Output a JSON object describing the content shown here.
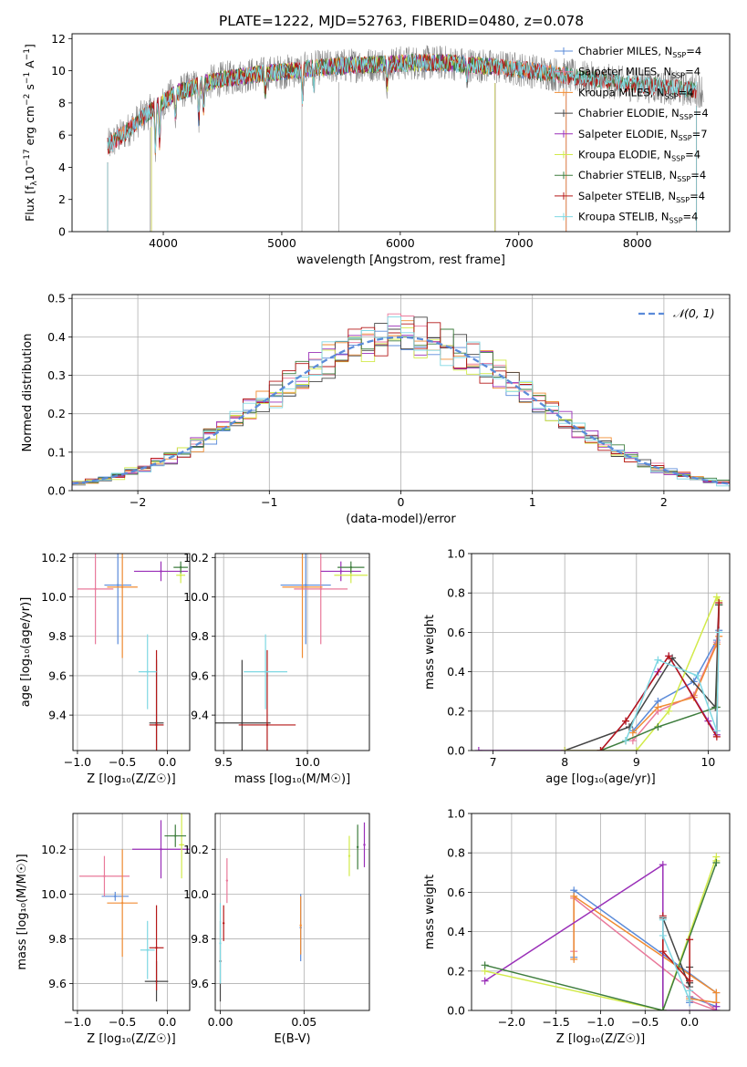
{
  "figure_title": "PLATE=1222, MJD=52763, FIBERID=0480, z=0.078",
  "colors": {
    "Chabrier MILES": "#5b8bd9",
    "Salpeter MILES": "#e9799a",
    "Kroupa MILES": "#f08c33",
    "Chabrier ELODIE": "#444444",
    "Salpeter ELODIE": "#9a2fb8",
    "Kroupa ELODIE": "#d2ea4a",
    "Chabrier STELIB": "#3e7d3e",
    "Salpeter STELIB": "#b51818",
    "Kroupa STELIB": "#7fd8e3",
    "gaussian": "#5b8bd9",
    "spectrum_gray": "#808080"
  },
  "chart_data": [
    {
      "id": "spectrum",
      "type": "line",
      "title": "PLATE=1222, MJD=52763, FIBERID=0480, z=0.078",
      "xlabel": "wavelength [Angstrom, rest frame]",
      "ylabel_parts": [
        "Flux [f",
        "λ",
        "10",
        "−17",
        " erg cm",
        "−2",
        " s",
        "−1",
        " A",
        "−1",
        "]"
      ],
      "xlim": [
        3230,
        8780
      ],
      "ylim": [
        0,
        12.3
      ],
      "xticks": [
        4000,
        5000,
        6000,
        7000,
        8000
      ],
      "yticks": [
        0,
        2,
        4,
        6,
        8,
        10,
        12
      ],
      "continuum": [
        [
          3530,
          5.3
        ],
        [
          3700,
          6.3
        ],
        [
          3800,
          7.0
        ],
        [
          3950,
          7.8
        ],
        [
          4100,
          8.6
        ],
        [
          4300,
          9.1
        ],
        [
          4500,
          9.5
        ],
        [
          4800,
          9.8
        ],
        [
          5100,
          10.0
        ],
        [
          5300,
          10.2
        ],
        [
          5500,
          10.3
        ],
        [
          5800,
          10.4
        ],
        [
          6100,
          10.5
        ],
        [
          6400,
          10.5
        ],
        [
          6700,
          10.3
        ],
        [
          7000,
          10.1
        ],
        [
          7300,
          9.8
        ],
        [
          7600,
          9.5
        ],
        [
          7900,
          9.2
        ],
        [
          8200,
          9.0
        ],
        [
          8500,
          8.8
        ]
      ],
      "series": [
        {
          "label": "Chabrier MILES, N",
          "sub": "SSP",
          "tail": "=4",
          "xmin": 3530,
          "xmax": 7400
        },
        {
          "label": "Salpeter MILES, N",
          "sub": "SSP",
          "tail": "=4",
          "xmin": 3530,
          "xmax": 7400
        },
        {
          "label": "Kroupa MILES, N",
          "sub": "SSP",
          "tail": "=4",
          "xmin": 3530,
          "xmax": 7400
        },
        {
          "label": "Chabrier ELODIE, N",
          "sub": "SSP",
          "tail": "=4",
          "xmin": 3900,
          "xmax": 6800
        },
        {
          "label": "Salpeter ELODIE, N",
          "sub": "SSP",
          "tail": "=7",
          "xmin": 3900,
          "xmax": 6800
        },
        {
          "label": "Kroupa ELODIE, N",
          "sub": "SSP",
          "tail": "=4",
          "xmin": 3900,
          "xmax": 6800
        },
        {
          "label": "Chabrier STELIB, N",
          "sub": "SSP",
          "tail": "=4",
          "xmin": 3530,
          "xmax": 8500
        },
        {
          "label": "Salpeter STELIB, N",
          "sub": "SSP",
          "tail": "=4",
          "xmin": 3530,
          "xmax": 8500
        },
        {
          "label": "Kroupa STELIB, N",
          "sub": "SSP",
          "tail": "=4",
          "xmin": 3530,
          "xmax": 8500
        }
      ],
      "legend_position": "upper-right"
    },
    {
      "id": "residuals",
      "type": "line",
      "xlabel": "(data-model)/error",
      "ylabel": "Normed distribution",
      "xlim": [
        -2.5,
        2.5
      ],
      "ylim": [
        0,
        0.51
      ],
      "xticks": [
        -2,
        -1,
        0,
        1,
        2
      ],
      "yticks": [
        0.0,
        0.1,
        0.2,
        0.3,
        0.4,
        0.5
      ],
      "grid": true,
      "gaussian_label": "𝒩(0, 1)",
      "legend_position": "upper-right",
      "bin_width": 0.1
    },
    {
      "id": "age_vs_Z",
      "type": "scatter",
      "xlabel": "Z [log₁₀(Z/Z☉)]",
      "ylabel": "age  [log₁₀(age/yr)]",
      "xlim": [
        -1.05,
        0.25
      ],
      "ylim": [
        9.22,
        10.22
      ],
      "xticks": [
        -1.0,
        -0.5,
        0.0
      ],
      "yticks": [
        9.4,
        9.6,
        9.8,
        10.0,
        10.2
      ],
      "grid": true,
      "points": [
        {
          "x": -0.55,
          "xerr": 0.15,
          "y": 10.06,
          "yerr": 0.3
        },
        {
          "x": -0.8,
          "xerr": 0.2,
          "y": 10.04,
          "yerr": 0.28
        },
        {
          "x": -0.5,
          "xerr": 0.17,
          "y": 10.05,
          "yerr": 0.36
        },
        {
          "x": -0.12,
          "xerr": 0.08,
          "y": 9.36,
          "yerr": 0.32
        },
        {
          "x": -0.07,
          "xerr": 0.3,
          "y": 10.13,
          "yerr": 0.05
        },
        {
          "x": 0.15,
          "xerr": 0.05,
          "y": 10.11,
          "yerr": 0.04
        },
        {
          "x": 0.15,
          "xerr": 0.08,
          "y": 10.15,
          "yerr": 0.03
        },
        {
          "x": -0.12,
          "xerr": 0.08,
          "y": 9.35,
          "yerr": 0.38
        },
        {
          "x": -0.22,
          "xerr": 0.1,
          "y": 9.62,
          "yerr": 0.19
        }
      ]
    },
    {
      "id": "age_vs_mass",
      "type": "scatter",
      "xlabel": "mass [log₁₀(M/M☉)]",
      "ylabel": "",
      "xlim": [
        9.45,
        10.37
      ],
      "ylim": [
        9.22,
        10.22
      ],
      "xticks": [
        9.5,
        10.0
      ],
      "yticks": [
        9.4,
        9.6,
        9.8,
        10.0,
        10.2
      ],
      "grid": true,
      "points": [
        {
          "x": 9.99,
          "xerr": 0.15,
          "y": 10.06,
          "yerr": 0.3
        },
        {
          "x": 10.08,
          "xerr": 0.16,
          "y": 10.04,
          "yerr": 0.28
        },
        {
          "x": 9.97,
          "xerr": 0.12,
          "y": 10.05,
          "yerr": 0.36
        },
        {
          "x": 9.61,
          "xerr": 0.17,
          "y": 9.36,
          "yerr": 0.32
        },
        {
          "x": 10.2,
          "xerr": 0.12,
          "y": 10.13,
          "yerr": 0.05
        },
        {
          "x": 10.26,
          "xerr": 0.1,
          "y": 10.11,
          "yerr": 0.04
        },
        {
          "x": 10.26,
          "xerr": 0.08,
          "y": 10.15,
          "yerr": 0.03
        },
        {
          "x": 9.76,
          "xerr": 0.17,
          "y": 9.35,
          "yerr": 0.38
        },
        {
          "x": 9.75,
          "xerr": 0.13,
          "y": 9.62,
          "yerr": 0.19
        }
      ]
    },
    {
      "id": "mass_weight_vs_age",
      "type": "line",
      "xlabel": "age  [log₁₀(age/yr)]",
      "ylabel": "mass weight",
      "xlim": [
        6.7,
        10.3
      ],
      "ylim": [
        0,
        1.0
      ],
      "xticks": [
        7,
        8,
        9,
        10
      ],
      "yticks": [
        0.0,
        0.2,
        0.4,
        0.6,
        0.8,
        1.0
      ],
      "grid": true,
      "series": [
        {
          "x": [
            8.95,
            9.3,
            9.8,
            10.12,
            10.15
          ],
          "y": [
            0.1,
            0.25,
            0.35,
            0.56,
            0.61
          ]
        },
        {
          "x": [
            8.95,
            9.3,
            9.8,
            10.12,
            10.15
          ],
          "y": [
            0.05,
            0.2,
            0.28,
            0.55,
            0.74
          ]
        },
        {
          "x": [
            8.95,
            9.3,
            9.8,
            10.12,
            10.15
          ],
          "y": [
            0.09,
            0.22,
            0.27,
            0.54,
            0.58
          ]
        },
        {
          "x": [
            8.0,
            8.9,
            9.5,
            10.1,
            10.15
          ],
          "y": [
            0.0,
            0.12,
            0.47,
            0.22,
            0.74
          ]
        },
        {
          "x": [
            6.8,
            8.0,
            8.5,
            8.85,
            9.3,
            9.45,
            10.0,
            10.12,
            10.15
          ],
          "y": [
            0.0,
            0.0,
            0.0,
            0.15,
            0.4,
            0.48,
            0.15,
            0.08,
            0.74
          ]
        },
        {
          "x": [
            8.0,
            9.0,
            9.45,
            10.12,
            10.15
          ],
          "y": [
            0.0,
            0.0,
            0.2,
            0.78,
            0.76
          ]
        },
        {
          "x": [
            8.5,
            8.85,
            9.3,
            10.12,
            10.15
          ],
          "y": [
            0.0,
            0.05,
            0.12,
            0.22,
            0.74
          ]
        },
        {
          "x": [
            8.5,
            8.85,
            9.45,
            10.12,
            10.15
          ],
          "y": [
            0.0,
            0.15,
            0.48,
            0.07,
            0.75
          ]
        },
        {
          "x": [
            8.85,
            9.3,
            9.85,
            10.12,
            10.15
          ],
          "y": [
            0.05,
            0.46,
            0.38,
            0.1,
            0.6
          ]
        }
      ]
    },
    {
      "id": "mass_vs_Z",
      "type": "scatter",
      "xlabel": "Z [log₁₀(Z/Z☉)]",
      "ylabel": "mass [log₁₀(M/M☉)]",
      "xlim": [
        -1.05,
        0.25
      ],
      "ylim": [
        9.48,
        10.36
      ],
      "xticks": [
        -1.0,
        -0.5,
        0.0
      ],
      "yticks": [
        9.6,
        9.8,
        10.0,
        10.2
      ],
      "grid": true,
      "points": [
        {
          "x": -0.58,
          "xerr": 0.15,
          "y": 9.99,
          "yerr": 0.02
        },
        {
          "x": -0.7,
          "xerr": 0.28,
          "y": 10.08,
          "yerr": 0.09
        },
        {
          "x": -0.5,
          "xerr": 0.17,
          "y": 9.96,
          "yerr": 0.24
        },
        {
          "x": -0.12,
          "xerr": 0.13,
          "y": 9.61,
          "yerr": 0.09
        },
        {
          "x": -0.07,
          "xerr": 0.32,
          "y": 10.2,
          "yerr": 0.13
        },
        {
          "x": 0.16,
          "xerr": 0.03,
          "y": 10.22,
          "yerr": 0.15
        },
        {
          "x": 0.09,
          "xerr": 0.12,
          "y": 10.26,
          "yerr": 0.05
        },
        {
          "x": -0.12,
          "xerr": 0.08,
          "y": 9.76,
          "yerr": 0.19
        },
        {
          "x": -0.22,
          "xerr": 0.08,
          "y": 9.75,
          "yerr": 0.13
        }
      ]
    },
    {
      "id": "mass_vs_EBV",
      "type": "scatter",
      "xlabel": "E(B-V)",
      "ylabel": "",
      "xlim": [
        -0.003,
        0.089
      ],
      "ylim": [
        9.48,
        10.36
      ],
      "xticks": [
        0.0,
        0.05
      ],
      "yticks": [
        9.6,
        9.8,
        10.0,
        10.2
      ],
      "grid": true,
      "points": [
        {
          "x": 0.048,
          "xerr": 0.0,
          "y": 9.85,
          "yerr": 0.15
        },
        {
          "x": 0.004,
          "xerr": 0.0,
          "y": 10.06,
          "yerr": 0.1
        },
        {
          "x": 0.048,
          "xerr": 0.0,
          "y": 9.86,
          "yerr": 0.13
        },
        {
          "x": 0.0,
          "xerr": 0.0,
          "y": 9.7,
          "yerr": 0.18
        },
        {
          "x": 0.086,
          "xerr": 0.0,
          "y": 10.22,
          "yerr": 0.1
        },
        {
          "x": 0.077,
          "xerr": 0.0,
          "y": 10.17,
          "yerr": 0.09
        },
        {
          "x": 0.082,
          "xerr": 0.0,
          "y": 10.21,
          "yerr": 0.1
        },
        {
          "x": 0.002,
          "xerr": 0.0,
          "y": 9.87,
          "yerr": 0.08
        },
        {
          "x": 0.0,
          "xerr": 0.0,
          "y": 9.78,
          "yerr": 0.18
        }
      ]
    },
    {
      "id": "mass_weight_vs_Z",
      "type": "line",
      "xlabel": "Z [log₁₀(Z/Z☉)]",
      "ylabel": "mass weight",
      "xlim": [
        -2.45,
        0.45
      ],
      "ylim": [
        0,
        1.0
      ],
      "xticks": [
        -2.0,
        -1.5,
        -1.0,
        -0.5,
        0.0
      ],
      "yticks": [
        0.0,
        0.2,
        0.4,
        0.6,
        0.8,
        1.0
      ],
      "grid": true,
      "series": [
        {
          "x": [
            -1.3,
            -1.3,
            0.3,
            0.3,
            0.0,
            0.0
          ],
          "y": [
            0.27,
            0.61,
            0.09,
            0.02,
            0.07,
            0.04
          ]
        },
        {
          "x": [
            -1.3,
            -1.3,
            0.3,
            0.0,
            0.0
          ],
          "y": [
            0.3,
            0.57,
            0.0,
            0.05,
            0.07
          ]
        },
        {
          "x": [
            -1.3,
            -1.3,
            0.3,
            0.3,
            0.0
          ],
          "y": [
            0.26,
            0.58,
            0.09,
            0.04,
            0.06
          ]
        },
        {
          "x": [
            -0.3,
            -0.3,
            0.0,
            0.0,
            0.0
          ],
          "y": [
            0.0,
            0.47,
            0.12,
            0.14,
            0.22
          ]
        },
        {
          "x": [
            -2.3,
            -0.3,
            -0.3,
            0.3,
            0.3
          ],
          "y": [
            0.15,
            0.74,
            0.0,
            0.0,
            0.02
          ]
        },
        {
          "x": [
            -2.3,
            -0.3,
            0.3,
            0.3
          ],
          "y": [
            0.2,
            0.0,
            0.78,
            0.76
          ]
        },
        {
          "x": [
            -2.3,
            -0.3,
            0.3
          ],
          "y": [
            0.23,
            0.0,
            0.75
          ]
        },
        {
          "x": [
            -0.3,
            -0.3,
            0.0,
            0.0
          ],
          "y": [
            0.48,
            0.3,
            0.15,
            0.36
          ]
        },
        {
          "x": [
            -0.3,
            -0.3,
            0.0,
            0.0
          ],
          "y": [
            0.46,
            0.38,
            0.05,
            0.1
          ]
        }
      ]
    }
  ]
}
